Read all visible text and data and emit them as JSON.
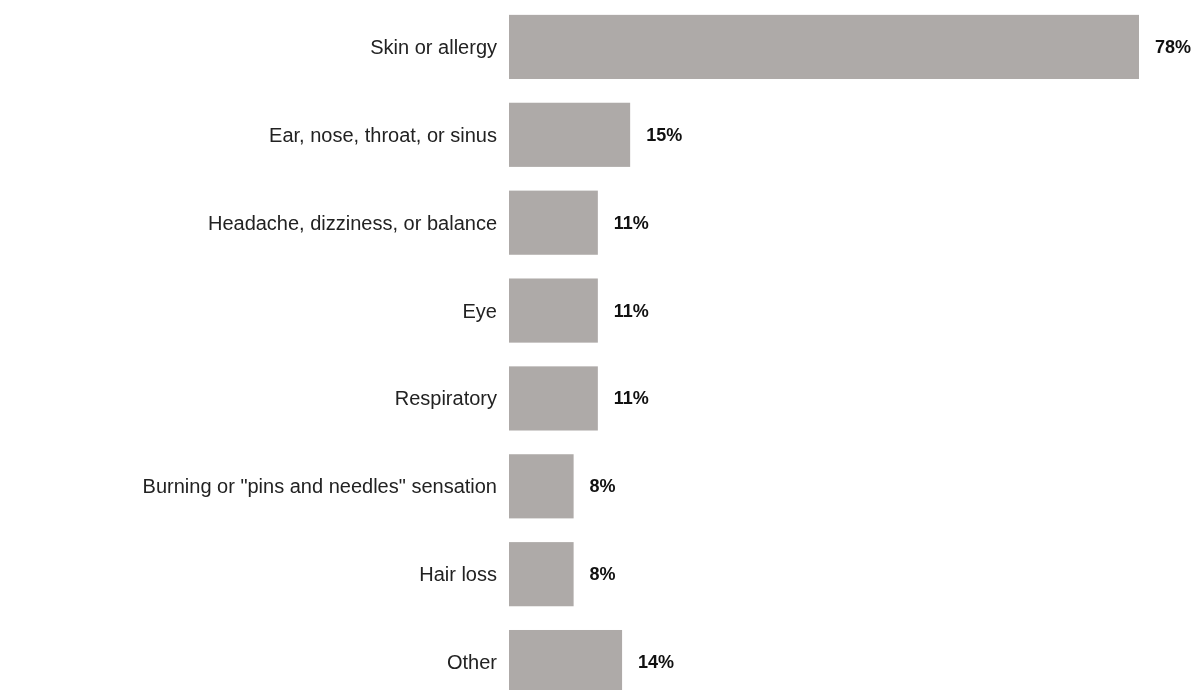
{
  "chart_data": {
    "type": "bar",
    "orientation": "horizontal",
    "categories": [
      "Skin or allergy",
      "Ear, nose, throat, or sinus",
      "Headache, dizziness, or balance",
      "Eye",
      "Respiratory",
      "Burning or \"pins and needles\" sensation",
      "Hair loss",
      "Other"
    ],
    "values": [
      78,
      15,
      11,
      11,
      11,
      8,
      8,
      14
    ],
    "value_labels": [
      "78%",
      "15%",
      "11%",
      "11%",
      "11%",
      "8%",
      "8%",
      "14%"
    ],
    "color": "#aeaaa8"
  }
}
